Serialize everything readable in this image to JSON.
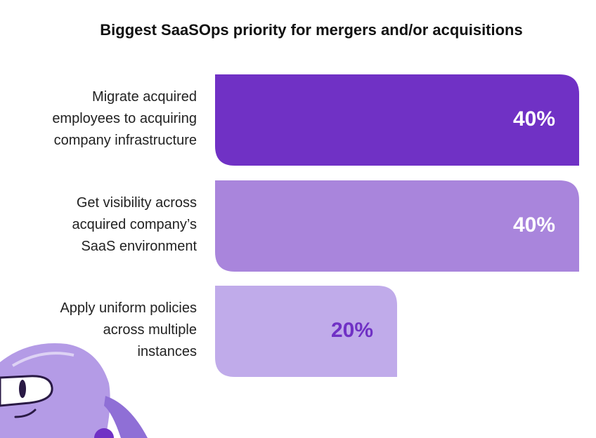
{
  "chart_data": {
    "type": "bar",
    "orientation": "horizontal",
    "title": "Biggest SaaSOps priority for mergers and/or acquisitions",
    "categories": [
      [
        "Migrate acquired",
        "employees to acquiring",
        "company infrastructure"
      ],
      [
        "Get visibility across",
        "acquired company’s",
        "SaaS environment"
      ],
      [
        "Apply uniform policies",
        "across multiple",
        "instances"
      ]
    ],
    "values": [
      40,
      40,
      20
    ],
    "value_labels": [
      "40%",
      "40%",
      "20%"
    ],
    "xlim": [
      0,
      40
    ],
    "grid": false,
    "legend": "none"
  },
  "colors": {
    "bar_fills": [
      "#7031c5",
      "#a985dc",
      "#c0abea"
    ],
    "value_text": [
      "#ffffff",
      "#ffffff",
      "#7031c5"
    ],
    "mascot_body": "#b49be6",
    "mascot_shadow": "#8f6fd6"
  },
  "decor": {
    "mascot": "robot-mascot-icon"
  }
}
